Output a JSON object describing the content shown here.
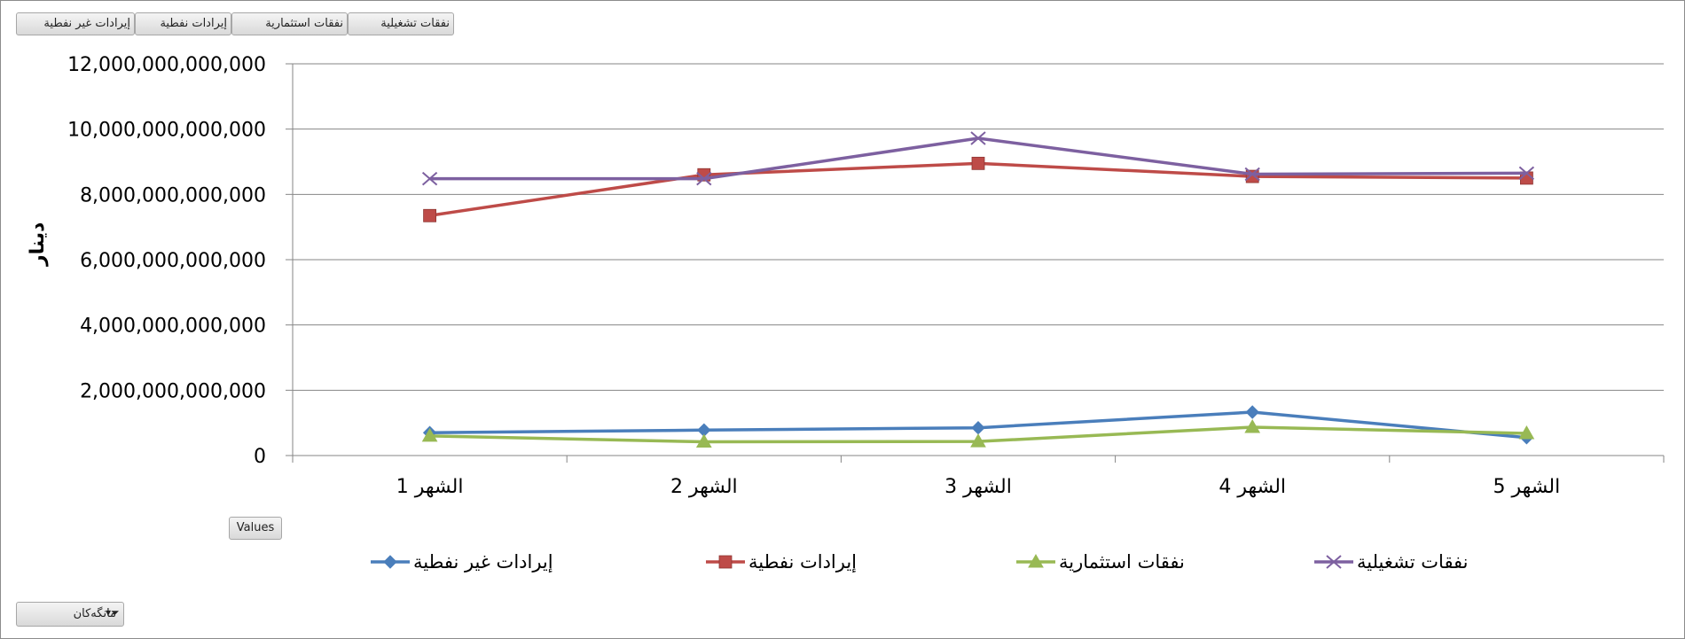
{
  "field_buttons": {
    "b1": "نفقات تشغيلية",
    "b2": "نفقات استثمارية",
    "b3": "إيرادات نفطية",
    "b4": "إيرادات غير نفطية"
  },
  "values_button": "Values",
  "filter_button": "مانگەکان",
  "y_axis_label": "دينار",
  "chart_data": {
    "type": "line",
    "categories": [
      "الشهر 1",
      "الشهر 2",
      "الشهر 3",
      "الشهر 4",
      "الشهر 5"
    ],
    "ylim": [
      0,
      12000000000000
    ],
    "yticks": [
      0,
      2000000000000,
      4000000000000,
      6000000000000,
      8000000000000,
      10000000000000,
      12000000000000
    ],
    "ytick_labels": [
      "0",
      "2,000,000,000,000",
      "4,000,000,000,000",
      "6,000,000,000,000",
      "8,000,000,000,000",
      "10,000,000,000,000",
      "12,000,000,000,000"
    ],
    "grid": true,
    "legend_position": "bottom",
    "series": [
      {
        "name": "إيرادات غير نفطية",
        "color": "#4a7ebb",
        "marker": "diamond",
        "values": [
          700000000000,
          780000000000,
          850000000000,
          1330000000000,
          550000000000
        ]
      },
      {
        "name": "إيرادات نفطية",
        "color": "#be4b48",
        "marker": "square",
        "values": [
          7350000000000,
          8600000000000,
          8950000000000,
          8550000000000,
          8500000000000
        ]
      },
      {
        "name": "نفقات استثمارية",
        "color": "#98b954",
        "marker": "triangle",
        "values": [
          600000000000,
          420000000000,
          430000000000,
          870000000000,
          680000000000
        ]
      },
      {
        "name": "نفقات تشغيلية",
        "color": "#7d60a0",
        "marker": "x",
        "values": [
          8480000000000,
          8480000000000,
          9720000000000,
          8620000000000,
          8650000000000
        ]
      }
    ]
  }
}
